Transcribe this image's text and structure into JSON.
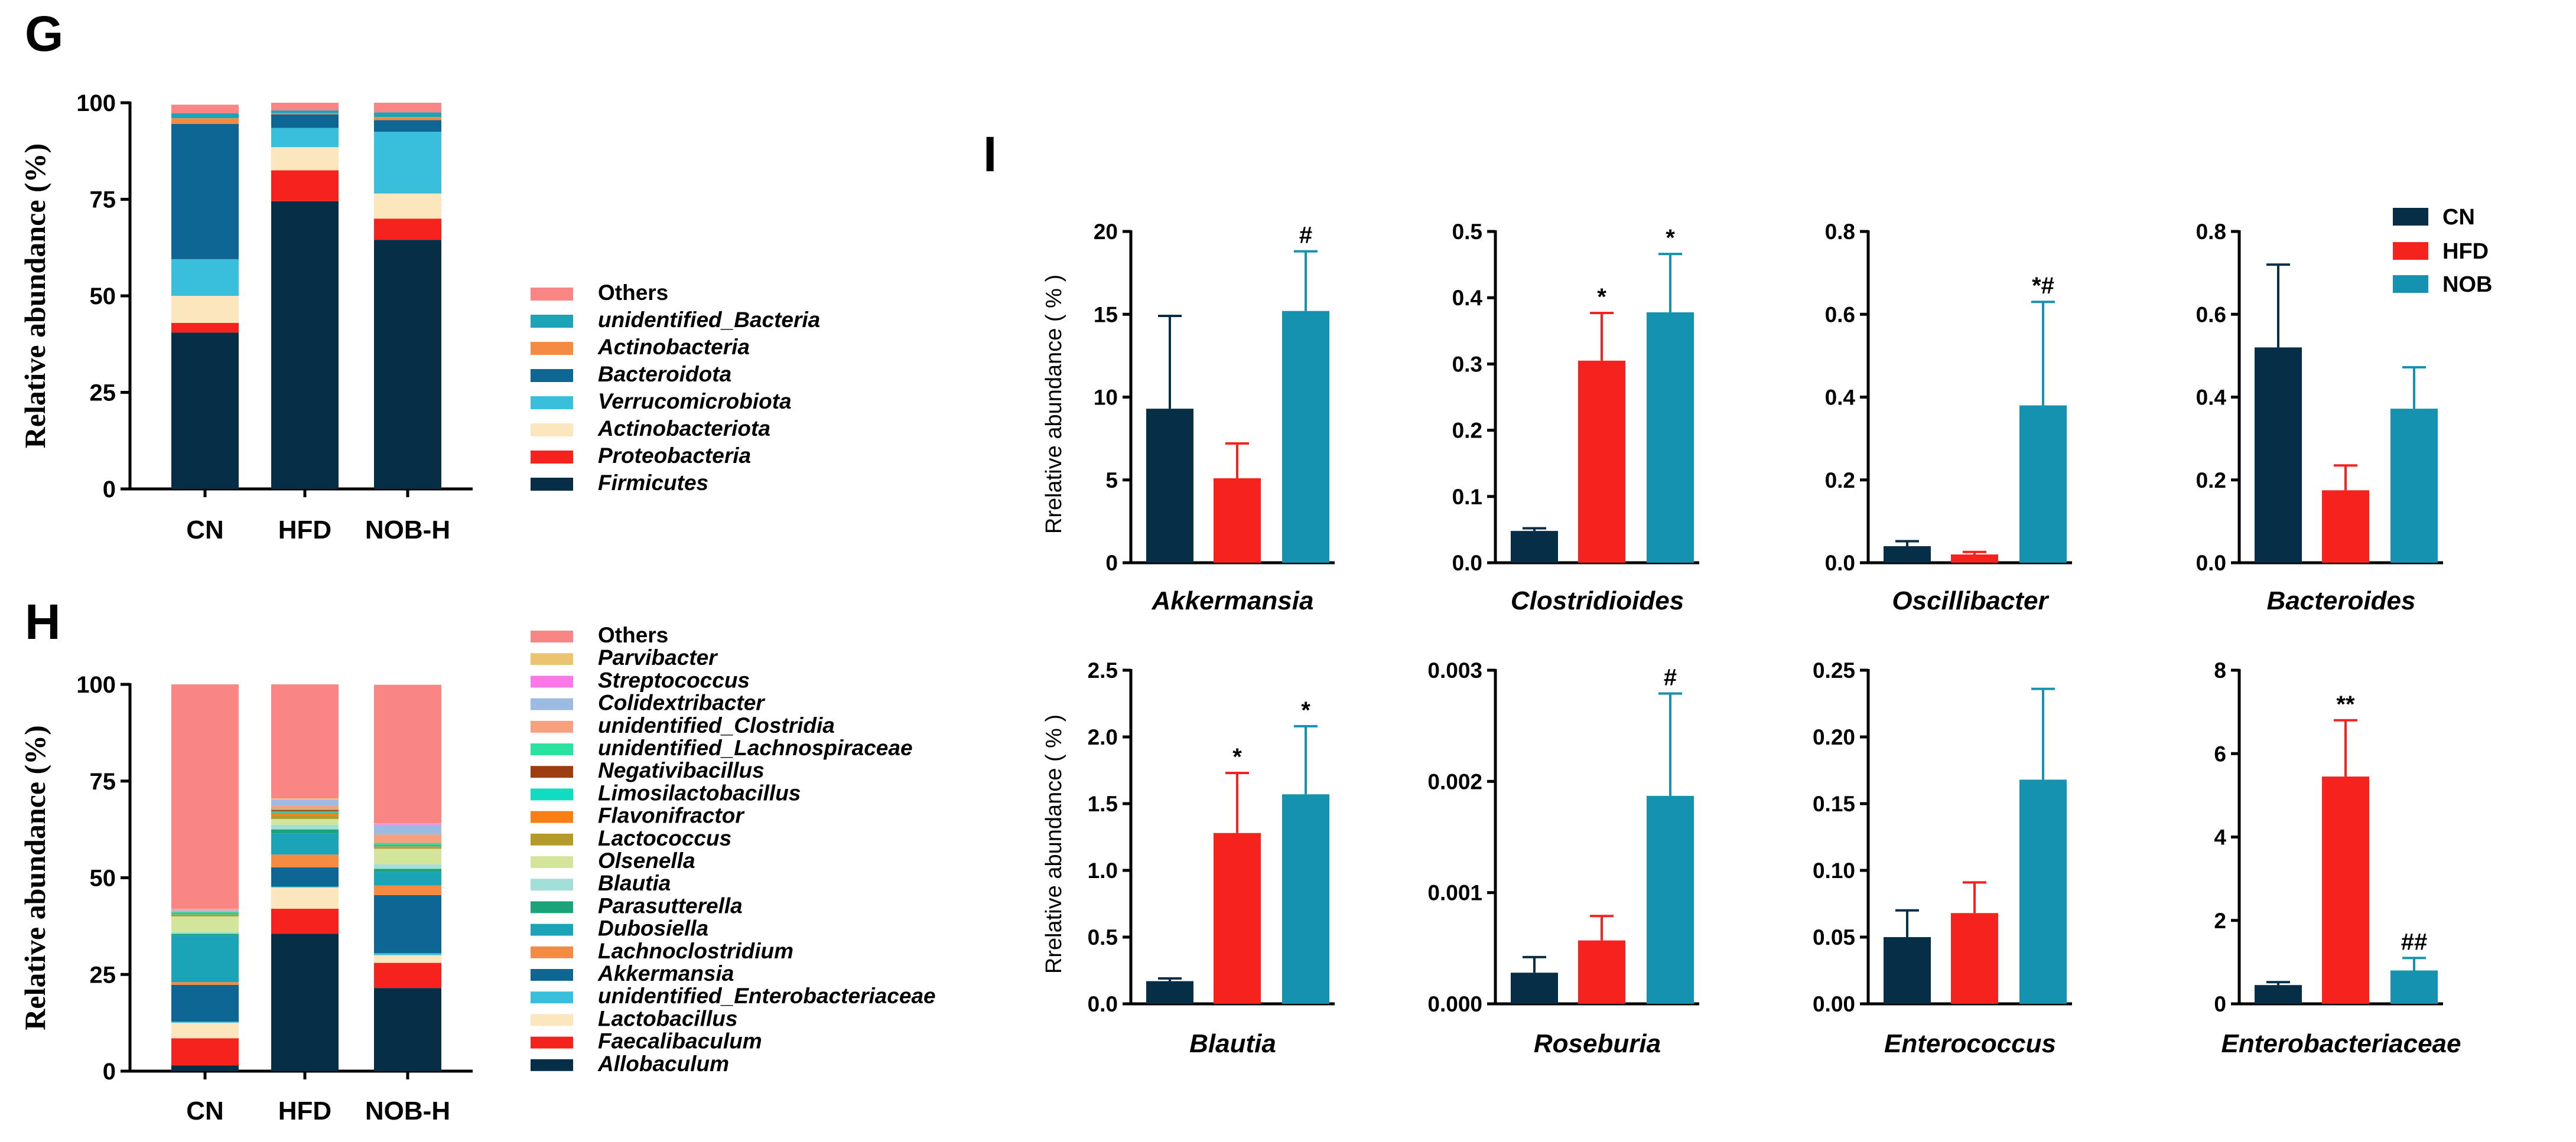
{
  "chart_data": [
    {
      "panel": "G",
      "type": "bar",
      "stacked": true,
      "ylabel": "Relative abundance (%)",
      "ylim": [
        0,
        100
      ],
      "yticks": [
        "0",
        "25",
        "50",
        "75",
        "100"
      ],
      "categories": [
        "CN",
        "HFD",
        "NOB-H"
      ],
      "series": [
        {
          "name": "Firmicutes",
          "color": "#062f47",
          "values": [
            40.5,
            74.5,
            64.5
          ]
        },
        {
          "name": "Proteobacteria",
          "color": "#f5221e",
          "values": [
            2.5,
            8,
            5.5
          ]
        },
        {
          "name": "Actinobacteriota",
          "color": "#fbe6bd",
          "values": [
            7,
            6,
            6.5
          ]
        },
        {
          "name": "Verrucomicrobiota",
          "color": "#39bfdb",
          "values": [
            9.5,
            5,
            16
          ]
        },
        {
          "name": "Bacteroidota",
          "color": "#0d6693",
          "values": [
            35,
            3.5,
            3
          ]
        },
        {
          "name": "Actinobacteria",
          "color": "#f58a43",
          "values": [
            1.5,
            0.3,
            0.8
          ]
        },
        {
          "name": "unidentified_Bacteria",
          "color": "#1ba3b8",
          "values": [
            1.3,
            0.7,
            1.2
          ]
        },
        {
          "name": "Others",
          "color": "#f98585",
          "values": [
            2.2,
            2,
            2.5
          ]
        }
      ]
    },
    {
      "panel": "H",
      "type": "bar",
      "stacked": true,
      "ylabel": "Relative abundance (%)",
      "ylim": [
        0,
        100
      ],
      "yticks": [
        "0",
        "25",
        "50",
        "75",
        "100"
      ],
      "categories": [
        "CN",
        "HFD",
        "NOB-H"
      ],
      "series": [
        {
          "name": "Allobaculum",
          "color": "#062f47",
          "values": [
            1.5,
            35.5,
            21.5
          ]
        },
        {
          "name": "Faecalibaculum",
          "color": "#f5221e",
          "values": [
            7,
            6.5,
            6.5
          ]
        },
        {
          "name": "Lactobacillus",
          "color": "#fbe6bd",
          "values": [
            4,
            5.5,
            2
          ]
        },
        {
          "name": "unidentified_Enterobacteriaceae",
          "color": "#39bfdb",
          "values": [
            0.3,
            0.2,
            0.5
          ]
        },
        {
          "name": "Akkermansia",
          "color": "#0d6693",
          "values": [
            9.5,
            5,
            15
          ]
        },
        {
          "name": "Lachnoclostridium",
          "color": "#f58a43",
          "values": [
            0.7,
            3.3,
            2.5
          ]
        },
        {
          "name": "Dubosiella",
          "color": "#1ba3b8",
          "values": [
            12,
            5.5,
            3.5
          ]
        },
        {
          "name": "Parasutterella",
          "color": "#1ba47a",
          "values": [
            0.5,
            1,
            0.8
          ]
        },
        {
          "name": "Blautia",
          "color": "#a1dfd8",
          "values": [
            0.5,
            1.2,
            1.2
          ]
        },
        {
          "name": "Olsenella",
          "color": "#d3e59b",
          "values": [
            4,
            1.5,
            4
          ]
        },
        {
          "name": "Lactococcus",
          "color": "#b39a2b",
          "values": [
            0.3,
            1,
            0.3
          ]
        },
        {
          "name": "Flavonifractor",
          "color": "#f97e13",
          "values": [
            0.2,
            0.6,
            0.3
          ]
        },
        {
          "name": "Limosilactobacillus",
          "color": "#0fdcc1",
          "values": [
            0.3,
            0.4,
            0.3
          ]
        },
        {
          "name": "Negativibacillus",
          "color": "#9c3d12",
          "values": [
            0.1,
            0.3,
            0.1
          ]
        },
        {
          "name": "unidentified_Lachnospiraceae",
          "color": "#2be3a1",
          "values": [
            0.3,
            0.3,
            0.5
          ]
        },
        {
          "name": "unidentified_Clostridia",
          "color": "#f7a07e",
          "values": [
            0.3,
            0.8,
            2.2
          ]
        },
        {
          "name": "Colidextribacter",
          "color": "#9bbbe2",
          "values": [
            0.3,
            1.5,
            2.5
          ]
        },
        {
          "name": "Streptococcus",
          "color": "#fb78e8",
          "values": [
            0.1,
            0.1,
            0.2
          ]
        },
        {
          "name": "Parvibacter",
          "color": "#ebc46f",
          "values": [
            0.1,
            0.3,
            0.2
          ]
        },
        {
          "name": "Others",
          "color": "#f98585",
          "values": [
            58,
            29.5,
            35.8
          ]
        }
      ]
    },
    {
      "panel": "I",
      "type": "bar",
      "ylabel": "Rrelative abundance ( % )",
      "groups": [
        "CN",
        "HFD",
        "NOB"
      ],
      "colors": {
        "CN": "#062f47",
        "HFD": "#f5221e",
        "NOB": "#1592b0"
      },
      "subplots": [
        {
          "title": "Akkermansia",
          "ylim": [
            0,
            20
          ],
          "yticks": [
            "0",
            "5",
            "10",
            "15",
            "20"
          ],
          "values": [
            9.3,
            5.1,
            15.2
          ],
          "errors": [
            5.6,
            2.1,
            3.6
          ],
          "sig": [
            "",
            "",
            "#"
          ]
        },
        {
          "title": "Clostridioides",
          "ylim": [
            0,
            0.5
          ],
          "yticks": [
            "0.0",
            "0.1",
            "0.2",
            "0.3",
            "0.4",
            "0.5"
          ],
          "values": [
            0.048,
            0.305,
            0.378
          ],
          "errors": [
            0.004,
            0.072,
            0.088
          ],
          "sig": [
            "",
            "*",
            "*"
          ]
        },
        {
          "title": "Oscillibacter",
          "ylim": [
            0,
            0.8
          ],
          "yticks": [
            "0.0",
            "0.2",
            "0.4",
            "0.6",
            "0.8"
          ],
          "values": [
            0.04,
            0.02,
            0.38
          ],
          "errors": [
            0.012,
            0.006,
            0.25
          ],
          "sig": [
            "",
            "",
            "*#"
          ]
        },
        {
          "title": "Bacteroides",
          "ylim": [
            0,
            0.8
          ],
          "yticks": [
            "0.0",
            "0.2",
            "0.4",
            "0.6",
            "0.8"
          ],
          "values": [
            0.52,
            0.175,
            0.372
          ],
          "errors": [
            0.2,
            0.06,
            0.1
          ],
          "sig": [
            "",
            "",
            ""
          ]
        },
        {
          "title": "Blautia",
          "ylim": [
            0,
            2.5
          ],
          "yticks": [
            "0.0",
            "0.5",
            "1.0",
            "1.5",
            "2.0",
            "2.5"
          ],
          "values": [
            0.17,
            1.28,
            1.57
          ],
          "errors": [
            0.02,
            0.45,
            0.51
          ],
          "sig": [
            "",
            "*",
            "*"
          ]
        },
        {
          "title": "Roseburia",
          "ylim": [
            0,
            0.003
          ],
          "yticks": [
            "0.000",
            "0.001",
            "0.002",
            "0.003"
          ],
          "values": [
            0.00028,
            0.00057,
            0.00187
          ],
          "errors": [
            0.00014,
            0.00022,
            0.00092
          ],
          "sig": [
            "",
            "",
            "#"
          ]
        },
        {
          "title": "Enterococcus",
          "ylim": [
            0,
            0.25
          ],
          "yticks": [
            "0.00",
            "0.05",
            "0.10",
            "0.15",
            "0.20",
            "0.25"
          ],
          "values": [
            0.05,
            0.068,
            0.168
          ],
          "errors": [
            0.02,
            0.023,
            0.068
          ],
          "sig": [
            "",
            "",
            ""
          ]
        },
        {
          "title": "Enterobacteriaceae",
          "ylim": [
            0,
            8
          ],
          "yticks": [
            "0",
            "2",
            "4",
            "6",
            "8"
          ],
          "values": [
            0.45,
            5.45,
            0.8
          ],
          "errors": [
            0.07,
            1.35,
            0.3
          ],
          "sig": [
            "",
            "**",
            "##"
          ]
        }
      ]
    }
  ]
}
